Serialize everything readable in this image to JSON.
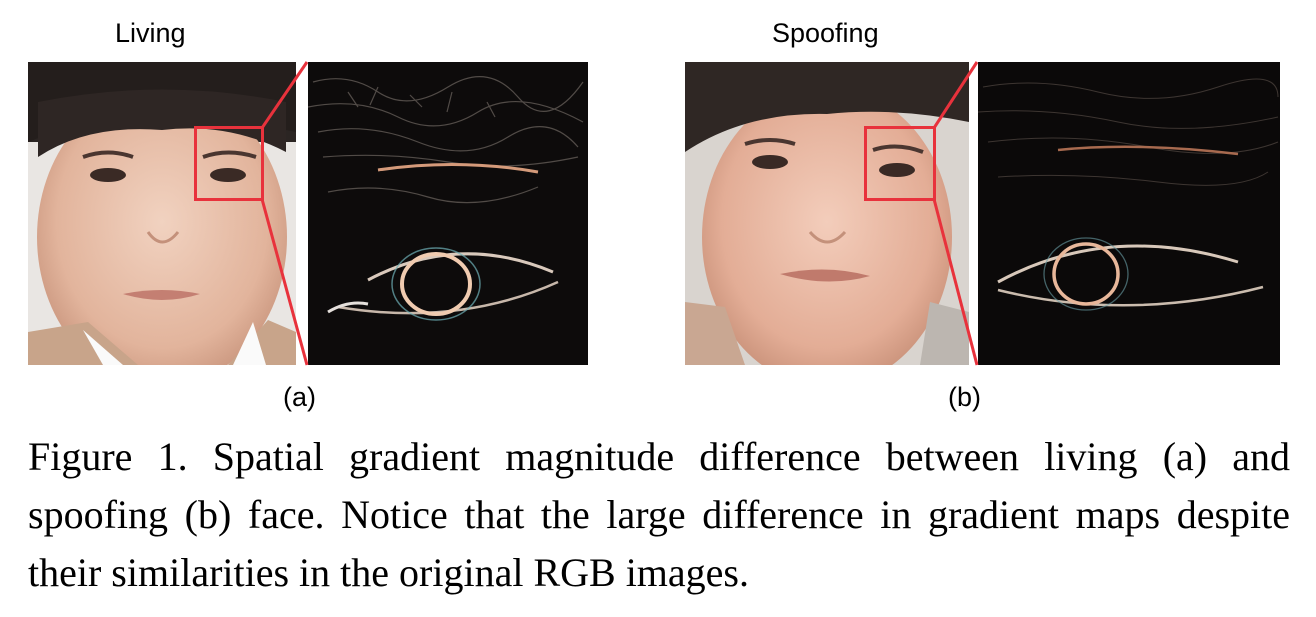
{
  "panels": {
    "a": {
      "label": "Living",
      "sub": "(a)"
    },
    "b": {
      "label": "Spoofing",
      "sub": "(b)"
    }
  },
  "caption": "Figure 1. Spatial gradient magnitude difference between living (a) and spoofing (b) face. Notice that the large difference in gradient maps despite their similarities in the original RGB images.",
  "colors": {
    "zoom_box": "#e8323c"
  }
}
